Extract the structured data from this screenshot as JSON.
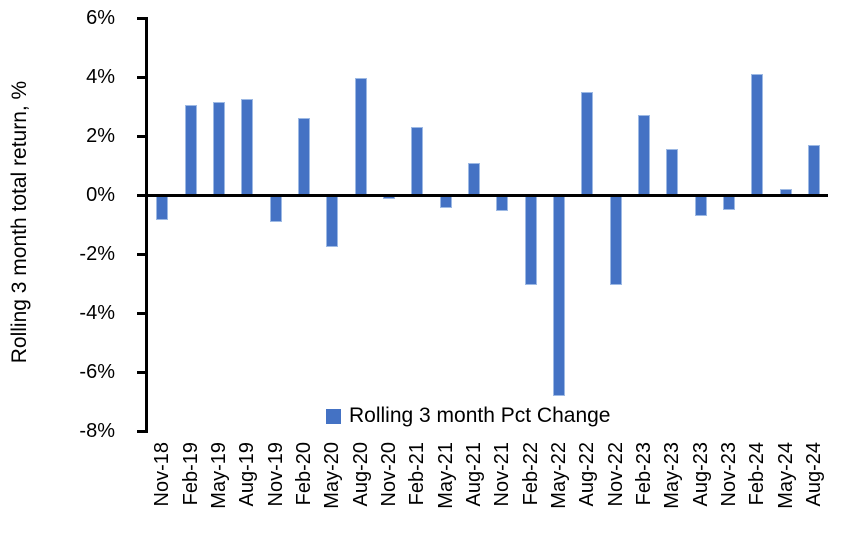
{
  "chart_data": {
    "type": "bar",
    "title": "",
    "xlabel": "",
    "ylabel": "Rolling 3 month total return, %",
    "legend_label": "Rolling 3 month Pct Change",
    "legend_position": "bottom",
    "grid": false,
    "ylim": [
      -8,
      6
    ],
    "y_ticks": {
      "values": [
        6,
        4,
        2,
        0,
        -2,
        -4,
        -6,
        -8
      ],
      "labels": [
        "6%",
        "4%",
        "2%",
        "0%",
        "-2%",
        "-4%",
        "-6%",
        "-8%"
      ]
    },
    "categories": [
      "Nov-18",
      "Feb-19",
      "May-19",
      "Aug-19",
      "Nov-19",
      "Feb-20",
      "May-20",
      "Aug-20",
      "Nov-20",
      "Feb-21",
      "May-21",
      "Aug-21",
      "Nov-21",
      "Feb-22",
      "May-22",
      "Aug-22",
      "Nov-22",
      "Feb-23",
      "May-23",
      "Aug-23",
      "Nov-23",
      "Feb-24",
      "May-24",
      "Aug-24"
    ],
    "values": [
      -0.85,
      3.05,
      3.15,
      3.25,
      -0.9,
      2.6,
      -1.75,
      3.95,
      -0.15,
      2.3,
      -0.45,
      1.1,
      -0.55,
      -3.05,
      -6.8,
      3.5,
      -3.05,
      2.7,
      1.55,
      -0.7,
      -0.5,
      4.1,
      0.2,
      1.7
    ],
    "colors": {
      "bar_fill": "#4472C4",
      "bar_border": "#9db9e4",
      "axis": "#000000"
    }
  }
}
